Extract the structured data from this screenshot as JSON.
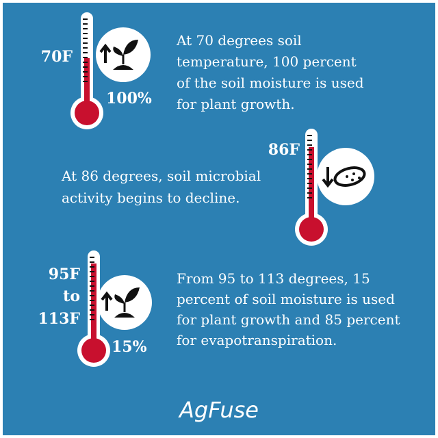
{
  "sections": [
    {
      "temperature": "70F",
      "percent": "100%",
      "lines": [
        "At 70 degrees soil",
        "temperature, 100 percent",
        "of the soil moisture is used",
        "for plant growth."
      ]
    },
    {
      "temperature": "86F",
      "lines": [
        "At 86 degrees, soil microbial",
        "activity begins to decline."
      ]
    },
    {
      "temperature_from": "95F",
      "temperature_joiner": "to",
      "temperature_to": "113F",
      "percent": "15%",
      "lines": [
        "From 95 to 113 degrees, 15",
        "percent of soil moisture is used",
        "for plant growth and 85 percent",
        "for evapotranspiration."
      ]
    }
  ],
  "logo": "AgFuse"
}
